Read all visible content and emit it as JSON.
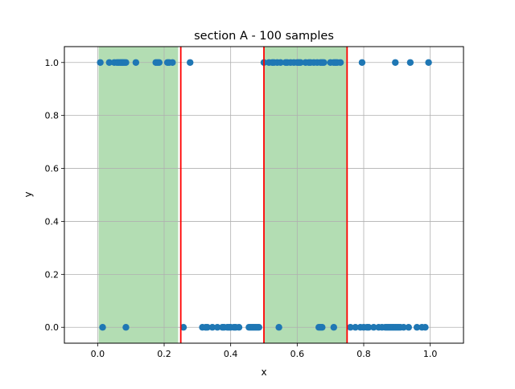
{
  "chart_data": {
    "type": "scatter",
    "title": "section A - 100 samples",
    "xlabel": "x",
    "ylabel": "y",
    "xlim": [
      -0.1,
      1.1
    ],
    "ylim": [
      -0.06,
      1.06
    ],
    "xticks": [
      "0.0",
      "0.2",
      "0.4",
      "0.6",
      "0.8",
      "1.0"
    ],
    "xtick_values": [
      0.0,
      0.2,
      0.4,
      0.6,
      0.8,
      1.0
    ],
    "yticks": [
      "0.0",
      "0.2",
      "0.4",
      "0.6",
      "0.8",
      "1.0"
    ],
    "ytick_values": [
      0.0,
      0.2,
      0.4,
      0.6,
      0.8,
      1.0
    ],
    "grid": true,
    "colors": {
      "points": "#1f77b4",
      "regions": "#2ca02c",
      "boundaries": "#ff0000"
    },
    "shaded_regions": [
      [
        0.003,
        0.242
      ],
      [
        0.5,
        0.75
      ]
    ],
    "boundary_lines": [
      0.25,
      0.5,
      0.75
    ],
    "points_y1": [
      0.008,
      0.035,
      0.05,
      0.058,
      0.063,
      0.068,
      0.072,
      0.076,
      0.08,
      0.085,
      0.115,
      0.175,
      0.18,
      0.185,
      0.21,
      0.215,
      0.225,
      0.278,
      0.5,
      0.515,
      0.525,
      0.53,
      0.54,
      0.55,
      0.565,
      0.57,
      0.58,
      0.59,
      0.6,
      0.605,
      0.61,
      0.625,
      0.635,
      0.64,
      0.65,
      0.66,
      0.67,
      0.675,
      0.68,
      0.7,
      0.71,
      0.715,
      0.72,
      0.73,
      0.795,
      0.895,
      0.94,
      0.995
    ],
    "points_y0": [
      0.015,
      0.085,
      0.258,
      0.315,
      0.325,
      0.33,
      0.345,
      0.36,
      0.375,
      0.38,
      0.39,
      0.395,
      0.4,
      0.41,
      0.415,
      0.425,
      0.455,
      0.46,
      0.465,
      0.47,
      0.475,
      0.48,
      0.485,
      0.545,
      0.665,
      0.67,
      0.675,
      0.71,
      0.76,
      0.775,
      0.79,
      0.8,
      0.81,
      0.815,
      0.83,
      0.845,
      0.855,
      0.865,
      0.87,
      0.875,
      0.88,
      0.885,
      0.89,
      0.895,
      0.9,
      0.905,
      0.91,
      0.92,
      0.935,
      0.96,
      0.975,
      0.985
    ]
  }
}
